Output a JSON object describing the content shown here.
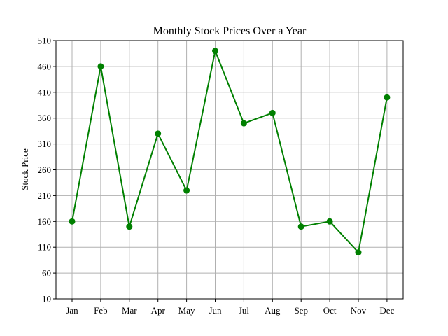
{
  "chart_data": {
    "type": "line",
    "title": "Monthly Stock Prices Over a Year",
    "xlabel": "",
    "ylabel": "Stock Price",
    "categories": [
      "Jan",
      "Feb",
      "Mar",
      "Apr",
      "May",
      "Jun",
      "Jul",
      "Aug",
      "Sep",
      "Oct",
      "Nov",
      "Dec"
    ],
    "series": [
      {
        "values": [
          160,
          460,
          150,
          330,
          220,
          490,
          350,
          370,
          150,
          160,
          100,
          400
        ]
      }
    ],
    "ylim": [
      10,
      510
    ],
    "yticks": [
      10,
      60,
      110,
      160,
      210,
      260,
      310,
      360,
      410,
      460,
      510
    ],
    "grid": true,
    "colors": {
      "line": "#008000",
      "grid": "#b0b0b0",
      "axes": "#000000"
    }
  }
}
